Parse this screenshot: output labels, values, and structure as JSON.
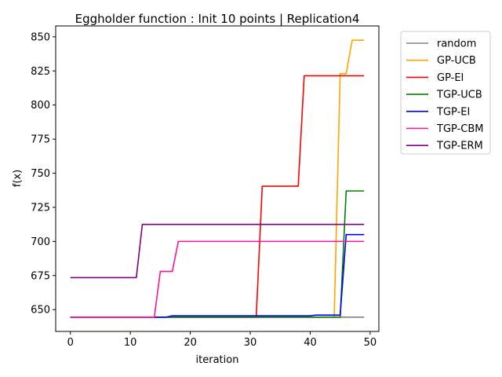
{
  "chart_data": {
    "type": "line",
    "title": "Eggholder function : Init 10 points | Replication4",
    "xlabel": "iteration",
    "ylabel": "f(x)",
    "xlim": [
      -2.45,
      51.45
    ],
    "ylim": [
      634,
      858
    ],
    "xticks": [
      0,
      10,
      20,
      30,
      40,
      50
    ],
    "yticks": [
      650,
      675,
      700,
      725,
      750,
      775,
      800,
      825,
      850
    ],
    "grid": false,
    "legend_position": "outside-top-right",
    "series": [
      {
        "name": "random",
        "color": "#808080",
        "steps": [
          [
            0,
            644.5
          ],
          [
            49,
            644.5
          ]
        ]
      },
      {
        "name": "GP-UCB",
        "color": "#ffa500",
        "steps": [
          [
            0,
            644.5
          ],
          [
            44,
            644.5
          ],
          [
            45,
            823
          ],
          [
            46,
            823
          ],
          [
            47,
            847.5
          ],
          [
            49,
            847.5
          ]
        ]
      },
      {
        "name": "GP-EI",
        "color": "#ff0000",
        "steps": [
          [
            0,
            644.5
          ],
          [
            31,
            644.5
          ],
          [
            32,
            740.5
          ],
          [
            38,
            740.5
          ],
          [
            39,
            821.5
          ],
          [
            49,
            821.5
          ]
        ]
      },
      {
        "name": "TGP-UCB",
        "color": "#008000",
        "steps": [
          [
            0,
            644.5
          ],
          [
            45,
            644.5
          ],
          [
            46,
            737
          ],
          [
            49,
            737
          ]
        ]
      },
      {
        "name": "TGP-EI",
        "color": "#0000ff",
        "steps": [
          [
            0,
            644.5
          ],
          [
            16,
            644.5
          ],
          [
            17,
            645.5
          ],
          [
            40,
            645.5
          ],
          [
            41,
            646
          ],
          [
            45,
            646
          ],
          [
            46,
            705
          ],
          [
            49,
            705
          ]
        ]
      },
      {
        "name": "TGP-CBM",
        "color": "#ff1493",
        "steps": [
          [
            0,
            644.5
          ],
          [
            14,
            644.5
          ],
          [
            15,
            678
          ],
          [
            17,
            678
          ],
          [
            18,
            700
          ],
          [
            49,
            700
          ]
        ]
      },
      {
        "name": "TGP-ERM",
        "color": "#800080",
        "steps": [
          [
            0,
            673.5
          ],
          [
            11,
            673.5
          ],
          [
            12,
            712.5
          ],
          [
            49,
            712.5
          ]
        ]
      }
    ]
  }
}
